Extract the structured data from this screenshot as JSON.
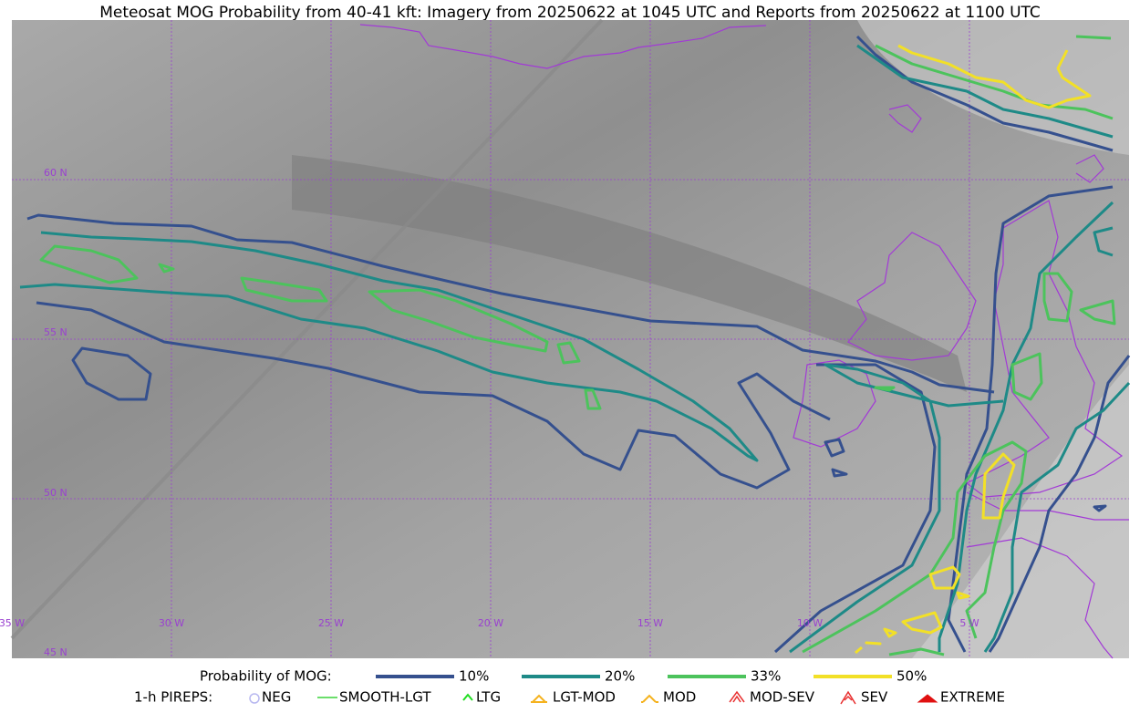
{
  "title": "Meteosat MOG Probability from 40-41 kft: Imagery from 20250622 at 1045 UTC and Reports from 20250622 at 1100 UTC",
  "map": {
    "lat_labels": [
      "60 N",
      "55 N",
      "50 N",
      "45 N"
    ],
    "lon_labels": [
      "35 W",
      "30 W",
      "25 W",
      "20 W",
      "15 W",
      "10 W",
      "5 W"
    ]
  },
  "legend": {
    "probability": {
      "label": "Probability of MOG:",
      "items": [
        "10%",
        "20%",
        "33%",
        "50%"
      ]
    },
    "pireps": {
      "label": "1-h PIREPS:",
      "items": [
        "NEG",
        "SMOOTH-LGT",
        "LTG",
        "LGT-MOD",
        "MOD",
        "MOD-SEV",
        "SEV",
        "EXTREME"
      ]
    }
  }
}
